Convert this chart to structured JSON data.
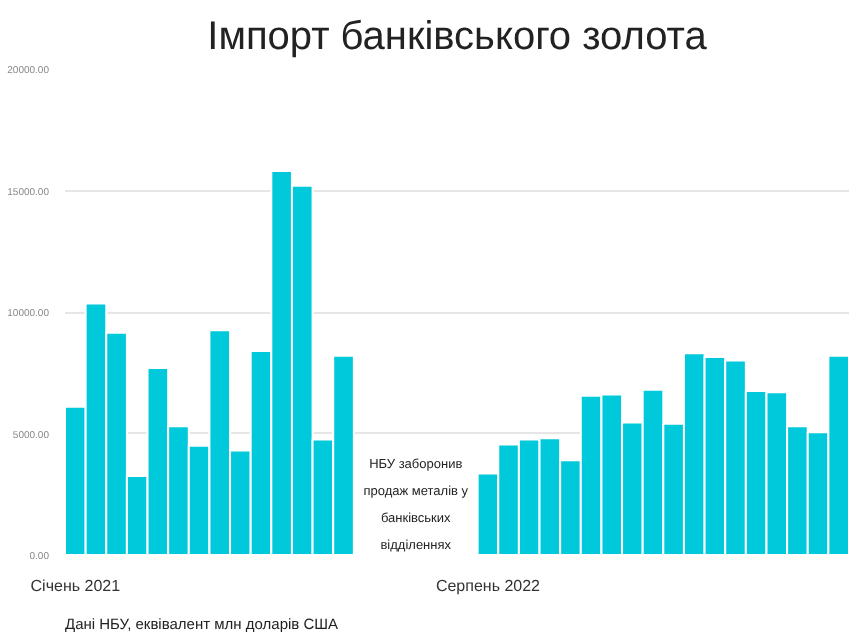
{
  "chart_data": {
    "type": "bar",
    "title": "Імпорт банківського золота",
    "categories": [
      "Січень 2021",
      null,
      null,
      null,
      null,
      null,
      null,
      null,
      null,
      null,
      null,
      null,
      null,
      null,
      null,
      null,
      null,
      null,
      null,
      null,
      "Серпень 2022",
      null,
      null,
      null,
      null,
      null,
      null,
      null,
      null,
      null,
      null,
      null,
      null,
      null,
      null,
      null,
      null,
      null
    ],
    "values": [
      6100,
      10350,
      9150,
      3250,
      7700,
      5300,
      4500,
      9250,
      4300,
      8400,
      15800,
      15200,
      4750,
      8200,
      null,
      null,
      null,
      null,
      null,
      null,
      3350,
      4550,
      4750,
      4800,
      3900,
      6550,
      6600,
      5450,
      6800,
      5400,
      8300,
      8150,
      8000,
      6750,
      6700,
      5300,
      5050,
      8200
    ],
    "color": "#00c9db",
    "ylim": [
      0,
      20000
    ],
    "yticks": [
      {
        "value": 0,
        "label": "0.00"
      },
      {
        "value": 5000,
        "label": "5000.00"
      },
      {
        "value": 10000,
        "label": "10000.00"
      },
      {
        "value": 15000,
        "label": "15000.00"
      },
      {
        "value": 20000,
        "label": "20000.00"
      }
    ],
    "grid": "y",
    "annotations": [
      "НБУ заборонив продаж металів у банківських відділеннях",
      "Дані НБУ, еквівалент млн доларів США"
    ]
  }
}
